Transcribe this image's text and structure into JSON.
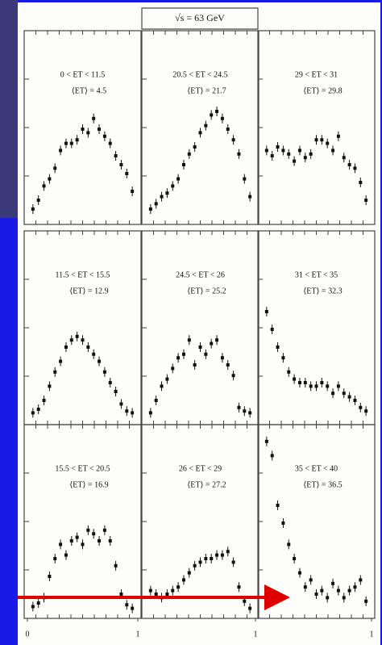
{
  "chart_data": [
    {
      "type": "scatter",
      "title": "√s = 63 GeV",
      "range_label": "0 < ET < 11.5",
      "mean_label": "⟨ET⟩ = 4.5",
      "color": "#111",
      "xlim": [
        0,
        1
      ],
      "ylim": [
        0,
        100
      ],
      "x": [
        0.05,
        0.1,
        0.15,
        0.2,
        0.25,
        0.3,
        0.35,
        0.4,
        0.45,
        0.5,
        0.55,
        0.6,
        0.65,
        0.7,
        0.75,
        0.8,
        0.85,
        0.9,
        0.95
      ],
      "values": [
        5,
        10,
        18,
        22,
        28,
        38,
        42,
        42,
        44,
        50,
        48,
        56,
        50,
        46,
        42,
        35,
        30,
        25,
        15
      ]
    },
    {
      "type": "scatter",
      "range_label": "20.5 < ET < 24.5",
      "mean_label": "⟨ET⟩ = 21.7",
      "color": "#111",
      "xlim": [
        0,
        1
      ],
      "ylim": [
        0,
        100
      ],
      "x": [
        0.05,
        0.1,
        0.15,
        0.2,
        0.25,
        0.3,
        0.35,
        0.4,
        0.45,
        0.5,
        0.55,
        0.6,
        0.65,
        0.7,
        0.75,
        0.8,
        0.85,
        0.9,
        0.95
      ],
      "values": [
        5,
        8,
        12,
        14,
        18,
        22,
        30,
        36,
        40,
        48,
        52,
        58,
        60,
        56,
        50,
        44,
        36,
        22,
        12
      ]
    },
    {
      "type": "scatter",
      "range_label": "29 < ET < 31",
      "mean_label": "⟨ET⟩ = 29.8",
      "color": "#111",
      "xlim": [
        0,
        1
      ],
      "ylim": [
        0,
        100
      ],
      "x": [
        0.05,
        0.1,
        0.15,
        0.2,
        0.25,
        0.3,
        0.35,
        0.4,
        0.45,
        0.5,
        0.55,
        0.6,
        0.65,
        0.7,
        0.75,
        0.8,
        0.85,
        0.9,
        0.95
      ],
      "values": [
        38,
        35,
        40,
        38,
        36,
        32,
        38,
        34,
        36,
        44,
        44,
        42,
        38,
        46,
        34,
        30,
        28,
        20,
        10
      ]
    },
    {
      "type": "scatter",
      "range_label": "11.5 < ET < 15.5",
      "mean_label": "⟨ET⟩ = 12.9",
      "color": "#111",
      "xlim": [
        0,
        1
      ],
      "ylim": [
        0,
        100
      ],
      "x": [
        0.05,
        0.1,
        0.15,
        0.2,
        0.25,
        0.3,
        0.35,
        0.4,
        0.45,
        0.5,
        0.55,
        0.6,
        0.65,
        0.7,
        0.75,
        0.8,
        0.85,
        0.9,
        0.95
      ],
      "values": [
        3,
        5,
        10,
        18,
        26,
        32,
        40,
        44,
        46,
        44,
        40,
        36,
        32,
        26,
        20,
        15,
        8,
        4,
        3
      ]
    },
    {
      "type": "scatter",
      "range_label": "24.5 < ET < 26",
      "mean_label": "⟨ET⟩ = 25.2",
      "color": "#111",
      "xlim": [
        0,
        1
      ],
      "ylim": [
        0,
        100
      ],
      "x": [
        0.05,
        0.1,
        0.15,
        0.2,
        0.25,
        0.3,
        0.35,
        0.4,
        0.45,
        0.5,
        0.55,
        0.6,
        0.65,
        0.7,
        0.75,
        0.8,
        0.85,
        0.9,
        0.95
      ],
      "values": [
        3,
        10,
        18,
        22,
        28,
        34,
        36,
        44,
        30,
        40,
        36,
        42,
        44,
        34,
        30,
        24,
        6,
        4,
        3
      ]
    },
    {
      "type": "scatter",
      "range_label": "31 < ET < 35",
      "mean_label": "⟨ET⟩ = 32.3",
      "color": "#111",
      "xlim": [
        0,
        1
      ],
      "ylim": [
        0,
        100
      ],
      "x": [
        0.05,
        0.1,
        0.15,
        0.2,
        0.25,
        0.3,
        0.35,
        0.4,
        0.45,
        0.5,
        0.55,
        0.6,
        0.65,
        0.7,
        0.75,
        0.8,
        0.85,
        0.9,
        0.95
      ],
      "values": [
        60,
        50,
        40,
        34,
        26,
        22,
        20,
        20,
        18,
        18,
        20,
        18,
        14,
        18,
        14,
        12,
        10,
        6,
        4
      ]
    },
    {
      "type": "scatter",
      "range_label": "15.5 < ET < 20.5",
      "mean_label": "⟨ET⟩ = 16.9",
      "color": "#111",
      "xlim": [
        0,
        1
      ],
      "ylim": [
        0,
        100
      ],
      "xticks": [
        0,
        1
      ],
      "x": [
        0.05,
        0.1,
        0.15,
        0.2,
        0.25,
        0.3,
        0.35,
        0.4,
        0.45,
        0.5,
        0.55,
        0.6,
        0.65,
        0.7,
        0.75,
        0.8,
        0.85,
        0.9,
        0.95
      ],
      "values": [
        3,
        5,
        8,
        20,
        30,
        38,
        32,
        40,
        42,
        38,
        46,
        44,
        40,
        46,
        40,
        26,
        10,
        4,
        2
      ]
    },
    {
      "type": "scatter",
      "range_label": "26 < ET < 29",
      "mean_label": "⟨ET⟩ = 27.2",
      "color": "#111",
      "xlim": [
        0,
        1
      ],
      "ylim": [
        0,
        100
      ],
      "xticks": [
        1
      ],
      "x": [
        0.05,
        0.1,
        0.15,
        0.2,
        0.25,
        0.3,
        0.35,
        0.4,
        0.45,
        0.5,
        0.55,
        0.6,
        0.65,
        0.7,
        0.75,
        0.8,
        0.85,
        0.9,
        0.95
      ],
      "values": [
        12,
        10,
        8,
        10,
        12,
        14,
        18,
        22,
        26,
        28,
        30,
        30,
        32,
        32,
        34,
        28,
        14,
        6,
        2
      ]
    },
    {
      "type": "scatter",
      "range_label": "35 < ET < 40",
      "mean_label": "⟨ET⟩ = 36.5",
      "color": "#111",
      "xlim": [
        0,
        1
      ],
      "ylim": [
        0,
        100
      ],
      "xticks": [
        1
      ],
      "x": [
        0.05,
        0.1,
        0.15,
        0.2,
        0.25,
        0.3,
        0.35,
        0.4,
        0.45,
        0.5,
        0.55,
        0.6,
        0.65,
        0.7,
        0.75,
        0.8,
        0.85,
        0.9,
        0.95
      ],
      "values": [
        96,
        88,
        60,
        50,
        38,
        30,
        22,
        14,
        18,
        10,
        12,
        8,
        16,
        12,
        8,
        12,
        14,
        18,
        6
      ]
    }
  ]
}
